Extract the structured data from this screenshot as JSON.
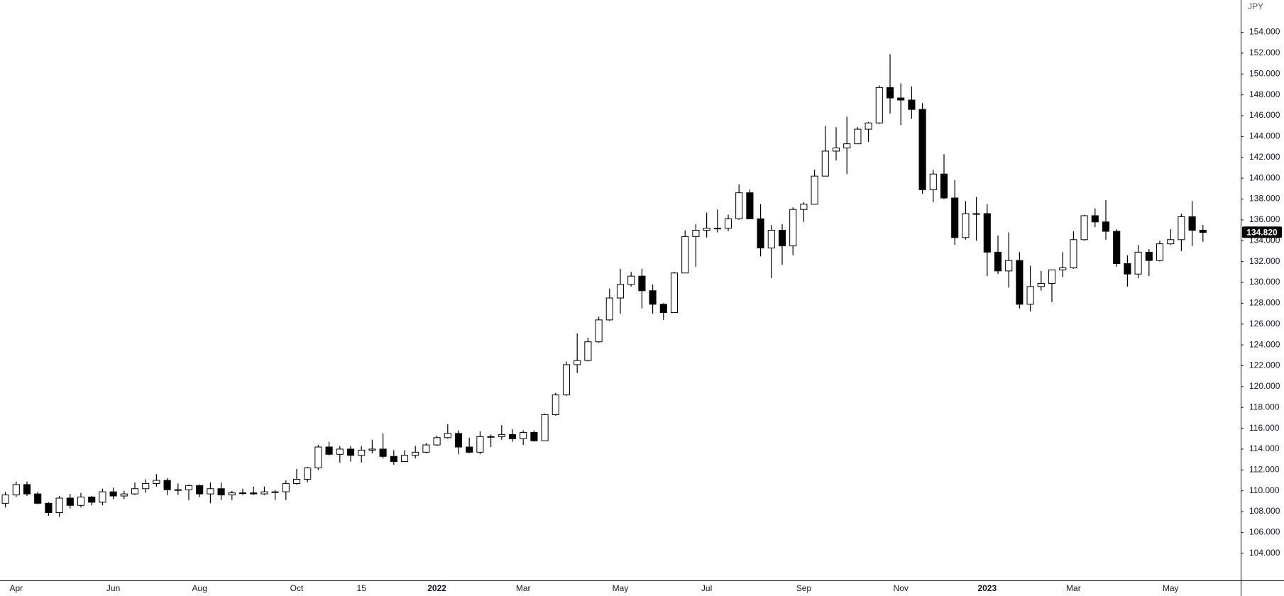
{
  "chart_data": {
    "type": "candlestick",
    "unit_label": "JPY",
    "up_color": "#ffffff",
    "down_color": "#000000",
    "wick_color": "#000000",
    "categories": [
      null,
      "Apr",
      null,
      null,
      null,
      null,
      null,
      null,
      null,
      null,
      "Jun",
      null,
      null,
      null,
      null,
      null,
      null,
      null,
      "Aug",
      null,
      null,
      null,
      null,
      null,
      null,
      null,
      null,
      "Oct",
      null,
      null,
      null,
      null,
      null,
      "15",
      null,
      null,
      null,
      null,
      null,
      null,
      "2022",
      null,
      null,
      null,
      null,
      null,
      null,
      null,
      "Mar",
      null,
      null,
      null,
      null,
      null,
      null,
      null,
      null,
      "May",
      null,
      null,
      null,
      null,
      null,
      null,
      null,
      "Jul",
      null,
      null,
      null,
      null,
      null,
      null,
      null,
      null,
      "Sep",
      null,
      null,
      null,
      null,
      null,
      null,
      null,
      null,
      "Nov",
      null,
      null,
      null,
      null,
      null,
      null,
      null,
      "2023",
      null,
      null,
      null,
      null,
      null,
      null,
      null,
      "Mar",
      null,
      null,
      null,
      null,
      null,
      null,
      null,
      null,
      "May",
      null,
      null,
      null
    ],
    "open": [
      108.8,
      109.6,
      110.6,
      109.7,
      108.8,
      107.9,
      109.3,
      108.6,
      109.4,
      108.9,
      109.9,
      109.5,
      109.7,
      110.2,
      110.7,
      111.0,
      110.1,
      110.1,
      110.5,
      109.7,
      110.2,
      109.6,
      109.8,
      109.8,
      109.7,
      109.9,
      109.9,
      110.7,
      111.1,
      112.2,
      114.2,
      113.5,
      114.0,
      113.4,
      113.9,
      114.0,
      113.3,
      112.8,
      113.4,
      113.7,
      114.4,
      115.1,
      115.5,
      114.2,
      113.7,
      115.2,
      115.2,
      115.4,
      115.0,
      115.6,
      114.8,
      117.3,
      119.2,
      122.1,
      122.5,
      124.3,
      126.4,
      128.5,
      129.8,
      130.6,
      129.2,
      127.9,
      127.1,
      130.9,
      134.4,
      135.0,
      135.2,
      135.2,
      136.1,
      138.6,
      136.1,
      133.3,
      135.0,
      133.5,
      137.0,
      137.5,
      140.2,
      142.6,
      142.9,
      143.3,
      144.7,
      145.3,
      148.7,
      147.7,
      147.5,
      146.6,
      138.9,
      140.4,
      138.1,
      134.3,
      136.6,
      136.6,
      132.9,
      131.1,
      132.1,
      127.9,
      129.6,
      129.9,
      131.2,
      131.4,
      134.1,
      136.4,
      135.8,
      134.9,
      131.8,
      130.8,
      132.9,
      132.1,
      133.7,
      134.1,
      136.3,
      135.0
    ],
    "high": [
      109.9,
      110.9,
      110.9,
      109.9,
      108.9,
      109.5,
      109.7,
      109.8,
      109.5,
      110.2,
      110.3,
      110.0,
      110.8,
      111.1,
      111.6,
      111.2,
      110.7,
      110.6,
      110.6,
      110.8,
      110.8,
      110.0,
      110.2,
      110.4,
      110.4,
      110.1,
      111.0,
      112.1,
      112.3,
      114.4,
      114.7,
      114.3,
      114.3,
      114.3,
      114.9,
      115.5,
      113.9,
      113.9,
      114.3,
      114.6,
      115.3,
      116.4,
      115.8,
      115.1,
      115.7,
      115.4,
      116.3,
      115.9,
      115.8,
      115.8,
      117.4,
      119.4,
      122.4,
      125.1,
      124.7,
      126.7,
      129.4,
      131.3,
      131.0,
      131.3,
      129.8,
      128.0,
      131.0,
      135.0,
      135.6,
      136.7,
      137.0,
      136.5,
      139.4,
      138.9,
      137.5,
      135.5,
      135.6,
      137.2,
      137.7,
      140.8,
      145.0,
      144.9,
      145.9,
      144.9,
      145.4,
      148.9,
      151.9,
      149.1,
      148.8,
      147.2,
      140.8,
      142.3,
      139.8,
      137.8,
      138.2,
      137.5,
      134.5,
      134.8,
      132.9,
      131.6,
      131.1,
      131.2,
      132.9,
      134.9,
      136.5,
      137.1,
      137.9,
      135.1,
      132.6,
      133.6,
      133.2,
      134.0,
      135.1,
      136.6,
      137.8,
      135.5
    ],
    "low": [
      108.4,
      109.4,
      109.5,
      108.7,
      107.6,
      107.5,
      108.3,
      108.4,
      108.6,
      108.6,
      109.2,
      109.2,
      109.6,
      109.8,
      110.4,
      109.6,
      109.6,
      109.1,
      109.4,
      108.8,
      109.1,
      109.1,
      109.6,
      109.6,
      109.6,
      109.1,
      109.1,
      110.6,
      110.8,
      112.0,
      113.4,
      112.7,
      112.8,
      112.7,
      113.6,
      113.1,
      112.5,
      112.8,
      113.1,
      113.6,
      114.3,
      115.0,
      113.5,
      113.6,
      113.5,
      114.2,
      114.9,
      114.7,
      114.4,
      114.7,
      114.8,
      117.2,
      119.1,
      121.3,
      122.4,
      124.2,
      126.3,
      127.0,
      129.6,
      127.5,
      127.0,
      126.4,
      127.1,
      130.9,
      131.5,
      134.3,
      134.8,
      134.9,
      136.0,
      136.5,
      132.5,
      130.4,
      131.7,
      132.6,
      135.8,
      137.5,
      140.2,
      141.7,
      140.4,
      143.3,
      143.5,
      145.2,
      146.2,
      145.1,
      145.7,
      138.5,
      137.7,
      138.0,
      133.6,
      134.1,
      134.0,
      130.6,
      130.8,
      129.5,
      127.5,
      127.2,
      129.2,
      128.1,
      130.5,
      131.3,
      134.0,
      135.3,
      134.1,
      131.5,
      129.6,
      130.4,
      130.6,
      132.0,
      133.6,
      133.0,
      133.5,
      133.9
    ],
    "close": [
      109.6,
      110.6,
      109.7,
      108.8,
      107.9,
      109.3,
      108.6,
      109.4,
      108.9,
      109.9,
      109.5,
      109.7,
      110.2,
      110.7,
      111.0,
      110.1,
      110.1,
      110.5,
      109.7,
      110.2,
      109.6,
      109.8,
      109.8,
      109.7,
      109.9,
      109.9,
      110.7,
      111.1,
      112.2,
      114.2,
      113.5,
      114.0,
      113.4,
      113.9,
      114.0,
      113.3,
      112.8,
      113.4,
      113.7,
      114.4,
      115.1,
      115.5,
      114.2,
      113.7,
      115.2,
      115.2,
      115.4,
      115.0,
      115.6,
      114.8,
      117.3,
      119.2,
      122.1,
      122.5,
      124.3,
      126.4,
      128.5,
      129.8,
      130.6,
      129.2,
      127.9,
      127.1,
      130.9,
      134.4,
      135.0,
      135.2,
      135.2,
      136.1,
      138.6,
      136.1,
      133.3,
      135.0,
      133.5,
      137.0,
      137.5,
      140.2,
      142.6,
      142.9,
      143.3,
      144.7,
      145.3,
      148.7,
      147.7,
      147.5,
      146.6,
      138.9,
      140.4,
      138.1,
      134.3,
      136.6,
      136.6,
      132.9,
      131.1,
      132.1,
      127.9,
      129.6,
      129.9,
      131.2,
      131.4,
      134.1,
      136.4,
      135.8,
      134.9,
      131.8,
      130.8,
      132.9,
      132.1,
      133.7,
      134.1,
      136.3,
      135.0,
      134.8
    ],
    "last_price": {
      "value": 134.82,
      "label": "134.820"
    },
    "ylim": [
      101.4,
      157.1
    ],
    "yticks": [
      {
        "value": 104,
        "label": "104.000"
      },
      {
        "value": 106,
        "label": "106.000"
      },
      {
        "value": 108,
        "label": "108.000"
      },
      {
        "value": 110,
        "label": "110.000"
      },
      {
        "value": 112,
        "label": "112.000"
      },
      {
        "value": 114,
        "label": "114.000"
      },
      {
        "value": 116,
        "label": "116.000"
      },
      {
        "value": 118,
        "label": "118.000"
      },
      {
        "value": 120,
        "label": "120.000"
      },
      {
        "value": 122,
        "label": "122.000"
      },
      {
        "value": 124,
        "label": "124.000"
      },
      {
        "value": 126,
        "label": "126.000"
      },
      {
        "value": 128,
        "label": "128.000"
      },
      {
        "value": 130,
        "label": "130.000"
      },
      {
        "value": 132,
        "label": "132.000"
      },
      {
        "value": 134,
        "label": "134.000"
      },
      {
        "value": 136,
        "label": "136.000"
      },
      {
        "value": 138,
        "label": "138.000"
      },
      {
        "value": 140,
        "label": "140.000"
      },
      {
        "value": 142,
        "label": "142.000"
      },
      {
        "value": 144,
        "label": "144.000"
      },
      {
        "value": 146,
        "label": "146.000"
      },
      {
        "value": 148,
        "label": "148.000"
      },
      {
        "value": 150,
        "label": "150.000"
      },
      {
        "value": 152,
        "label": "152.000"
      },
      {
        "value": 154,
        "label": "154.000"
      }
    ],
    "grid": false
  }
}
